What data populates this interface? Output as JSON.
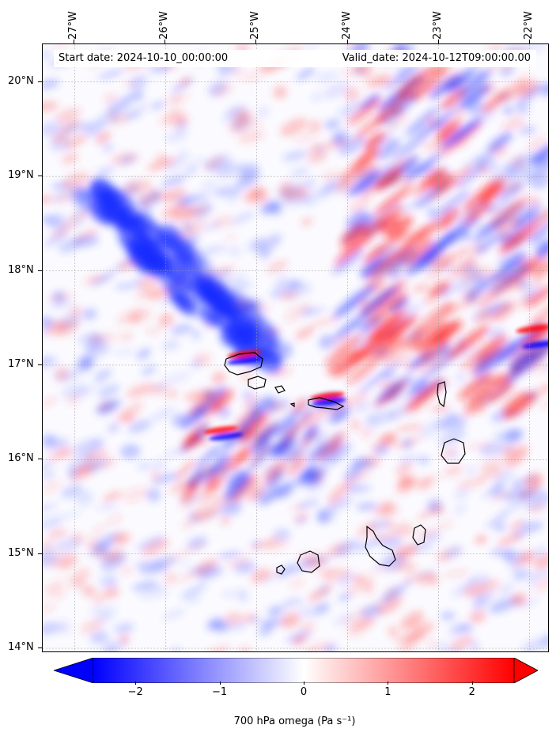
{
  "map": {
    "start_date": "Start date: 2024-10-10_00:00:00",
    "valid_date": "Valid_date: 2024-10-12T09:00:00.00",
    "lon_ticks": [
      "27°W",
      "26°W",
      "25°W",
      "24°W",
      "23°W",
      "22°W"
    ],
    "lat_ticks": [
      "20°N",
      "19°N",
      "18°N",
      "17°N",
      "16°N",
      "15°N",
      "14°N"
    ],
    "lon_values": [
      -27,
      -26,
      -25,
      -24,
      -23,
      -22
    ],
    "lat_values": [
      20,
      19,
      18,
      17,
      16,
      15,
      14
    ],
    "extent": {
      "lon_min": -27.35,
      "lon_max": -21.78,
      "lat_min": 13.95,
      "lat_max": 20.4
    },
    "islands": [
      "Santo Antão",
      "São Vicente",
      "Santa Luzia",
      "São Nicolau",
      "Sal",
      "Boa Vista",
      "Maio",
      "Santiago",
      "Fogo",
      "Brava"
    ],
    "colors": {
      "negative": "#0000ff",
      "positive": "#ff0000",
      "neutral": "#ffffff",
      "coast": "#000000"
    }
  },
  "colorbar": {
    "label": "700 hPa omega (Pa s⁻¹)",
    "ticks": [
      "−2",
      "−1",
      "0",
      "1",
      "2"
    ],
    "tick_values": [
      -2,
      -1,
      0,
      1,
      2
    ],
    "vmin": -2.5,
    "vmax": 2.5,
    "extend": "both"
  }
}
